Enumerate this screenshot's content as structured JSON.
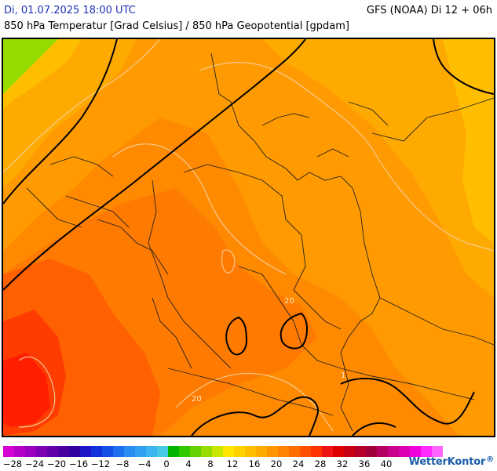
{
  "header": {
    "date": "Di, 01.07.2025 18:00 UTC",
    "model": "GFS (NOAA) Di 12 + 06h",
    "subtitle": "850 hPa Temperatur [Grad Celsius] / 850 hPa Geopotential [gpdam]"
  },
  "map": {
    "contour_labels": [
      "20",
      "20",
      "1"
    ]
  },
  "legend": {
    "colors": [
      "#d400d4",
      "#b400c8",
      "#9a00c0",
      "#7d00b4",
      "#6400a8",
      "#4b00a0",
      "#3200a0",
      "#1e14c8",
      "#1432dc",
      "#1450e6",
      "#1e6ef0",
      "#288cf0",
      "#32a0f0",
      "#3cb4f0",
      "#46c8e6",
      "#00b400",
      "#32c800",
      "#64d200",
      "#96dc00",
      "#c8e600",
      "#ffe600",
      "#ffd200",
      "#ffbe00",
      "#ffaa00",
      "#ff9600",
      "#ff8200",
      "#ff6e00",
      "#ff5000",
      "#ff3200",
      "#f01414",
      "#dc0000",
      "#c80014",
      "#b40028",
      "#a0003c",
      "#b40064",
      "#c8008c",
      "#dc00b4",
      "#f000dc",
      "#ff28ff",
      "#ff64ff"
    ],
    "ticks": [
      "−28",
      "−24",
      "−20",
      "−16",
      "−12",
      "−8",
      "−4",
      "0",
      "4",
      "8",
      "12",
      "16",
      "20",
      "24",
      "28",
      "32",
      "36",
      "40"
    ]
  },
  "branding": {
    "logo_text": "WetterKontor",
    "logo_mark": "®"
  }
}
